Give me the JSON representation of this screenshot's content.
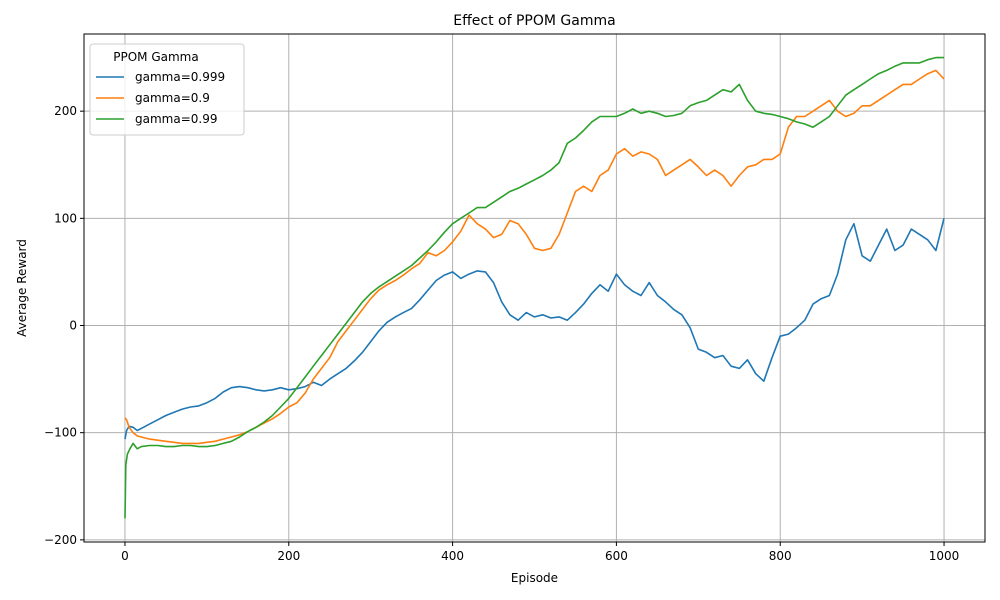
{
  "chart_data": {
    "type": "line",
    "title": "Effect of PPOM Gamma",
    "xlabel": "Episode",
    "ylabel": "Average Reward",
    "xlim": [
      -50,
      1050
    ],
    "ylim": [
      -202,
      272
    ],
    "xticks": [
      0,
      200,
      400,
      600,
      800,
      1000
    ],
    "yticks": [
      -200,
      -100,
      0,
      100,
      200
    ],
    "grid": true,
    "legend": {
      "title": "PPOM Gamma",
      "position": "top-left"
    },
    "series": [
      {
        "name": "gamma=0.999",
        "color": "#1f77b4",
        "x": [
          0,
          2,
          5,
          10,
          15,
          20,
          30,
          40,
          50,
          60,
          70,
          80,
          90,
          100,
          110,
          120,
          130,
          140,
          150,
          160,
          170,
          180,
          190,
          200,
          210,
          220,
          230,
          240,
          250,
          260,
          270,
          280,
          290,
          300,
          310,
          320,
          330,
          340,
          350,
          360,
          370,
          380,
          390,
          400,
          410,
          420,
          430,
          440,
          450,
          460,
          470,
          480,
          490,
          500,
          510,
          520,
          530,
          540,
          550,
          560,
          570,
          580,
          590,
          600,
          610,
          620,
          630,
          640,
          650,
          660,
          670,
          680,
          690,
          700,
          710,
          720,
          730,
          740,
          750,
          760,
          770,
          780,
          790,
          800,
          810,
          820,
          830,
          840,
          850,
          860,
          870,
          880,
          890,
          900,
          910,
          920,
          930,
          940,
          950,
          960,
          970,
          980,
          990,
          1000
        ],
        "y": [
          -106,
          -98,
          -94,
          -95,
          -98,
          -96,
          -92,
          -88,
          -84,
          -81,
          -78,
          -76,
          -75,
          -72,
          -68,
          -62,
          -58,
          -57,
          -58,
          -60,
          -61,
          -60,
          -58,
          -60,
          -59,
          -57,
          -53,
          -56,
          -50,
          -45,
          -40,
          -33,
          -25,
          -15,
          -5,
          3,
          8,
          12,
          16,
          24,
          33,
          42,
          47,
          50,
          44,
          48,
          51,
          50,
          40,
          22,
          10,
          5,
          12,
          8,
          10,
          7,
          8,
          5,
          12,
          20,
          30,
          38,
          32,
          48,
          38,
          32,
          28,
          40,
          28,
          22,
          15,
          10,
          -2,
          -22,
          -25,
          -30,
          -28,
          -38,
          -40,
          -32,
          -45,
          -52,
          -30,
          -10,
          -8,
          -2,
          5,
          20,
          25,
          28,
          48,
          80,
          95,
          65,
          60,
          75,
          90,
          70,
          75,
          90,
          85,
          80,
          70,
          100
        ]
      },
      {
        "name": "gamma=0.9",
        "color": "#ff7f0e",
        "x": [
          0,
          2,
          5,
          10,
          15,
          20,
          30,
          40,
          50,
          60,
          70,
          80,
          90,
          100,
          110,
          120,
          130,
          140,
          150,
          160,
          170,
          180,
          190,
          200,
          210,
          220,
          230,
          240,
          250,
          260,
          270,
          280,
          290,
          300,
          310,
          320,
          330,
          340,
          350,
          360,
          370,
          380,
          390,
          400,
          410,
          420,
          430,
          440,
          450,
          460,
          470,
          480,
          490,
          500,
          510,
          520,
          530,
          540,
          550,
          560,
          570,
          580,
          590,
          600,
          610,
          620,
          630,
          640,
          650,
          660,
          670,
          680,
          690,
          700,
          710,
          720,
          730,
          740,
          750,
          760,
          770,
          780,
          790,
          800,
          810,
          820,
          830,
          840,
          850,
          860,
          870,
          880,
          890,
          900,
          910,
          920,
          930,
          940,
          950,
          960,
          970,
          980,
          990,
          1000
        ],
        "y": [
          -86,
          -88,
          -95,
          -100,
          -103,
          -104,
          -106,
          -107,
          -108,
          -109,
          -110,
          -110,
          -110,
          -109,
          -108,
          -106,
          -104,
          -102,
          -99,
          -95,
          -91,
          -87,
          -82,
          -76,
          -72,
          -63,
          -50,
          -40,
          -30,
          -15,
          -5,
          5,
          15,
          25,
          33,
          38,
          42,
          47,
          53,
          58,
          68,
          65,
          70,
          78,
          88,
          103,
          95,
          90,
          82,
          85,
          98,
          95,
          85,
          72,
          70,
          72,
          85,
          105,
          125,
          130,
          125,
          140,
          145,
          160,
          165,
          158,
          162,
          160,
          155,
          140,
          145,
          150,
          155,
          148,
          140,
          145,
          140,
          130,
          140,
          148,
          150,
          155,
          155,
          160,
          185,
          195,
          195,
          200,
          205,
          210,
          200,
          195,
          198,
          205,
          205,
          210,
          215,
          220,
          225,
          225,
          230,
          235,
          238,
          230
        ]
      },
      {
        "name": "gamma=0.99",
        "color": "#2ca02c",
        "x": [
          0,
          1,
          3,
          6,
          10,
          15,
          20,
          30,
          40,
          50,
          60,
          70,
          80,
          90,
          100,
          110,
          120,
          130,
          140,
          150,
          160,
          170,
          180,
          190,
          200,
          210,
          220,
          230,
          240,
          250,
          260,
          270,
          280,
          290,
          300,
          310,
          320,
          330,
          340,
          350,
          360,
          370,
          380,
          390,
          400,
          410,
          420,
          430,
          440,
          450,
          460,
          470,
          480,
          490,
          500,
          510,
          520,
          530,
          540,
          550,
          560,
          570,
          580,
          590,
          600,
          610,
          620,
          630,
          640,
          650,
          660,
          670,
          680,
          690,
          700,
          710,
          720,
          730,
          740,
          750,
          760,
          770,
          780,
          790,
          800,
          810,
          820,
          830,
          840,
          850,
          860,
          870,
          880,
          890,
          900,
          910,
          920,
          930,
          940,
          950,
          960,
          970,
          980,
          990,
          1000
        ],
        "y": [
          -180,
          -130,
          -120,
          -115,
          -110,
          -115,
          -113,
          -112,
          -112,
          -113,
          -113,
          -112,
          -112,
          -113,
          -113,
          -112,
          -110,
          -108,
          -104,
          -99,
          -95,
          -90,
          -84,
          -76,
          -68,
          -58,
          -48,
          -38,
          -28,
          -18,
          -8,
          2,
          12,
          22,
          30,
          36,
          41,
          46,
          51,
          56,
          63,
          70,
          78,
          87,
          95,
          100,
          105,
          110,
          110,
          115,
          120,
          125,
          128,
          132,
          136,
          140,
          145,
          152,
          170,
          175,
          182,
          190,
          195,
          195,
          195,
          198,
          202,
          198,
          200,
          198,
          195,
          196,
          198,
          205,
          208,
          210,
          215,
          220,
          218,
          225,
          210,
          200,
          198,
          197,
          195,
          193,
          190,
          188,
          185,
          190,
          195,
          205,
          215,
          220,
          225,
          230,
          235,
          238,
          242,
          245,
          245,
          245,
          248,
          250,
          250
        ]
      }
    ]
  }
}
